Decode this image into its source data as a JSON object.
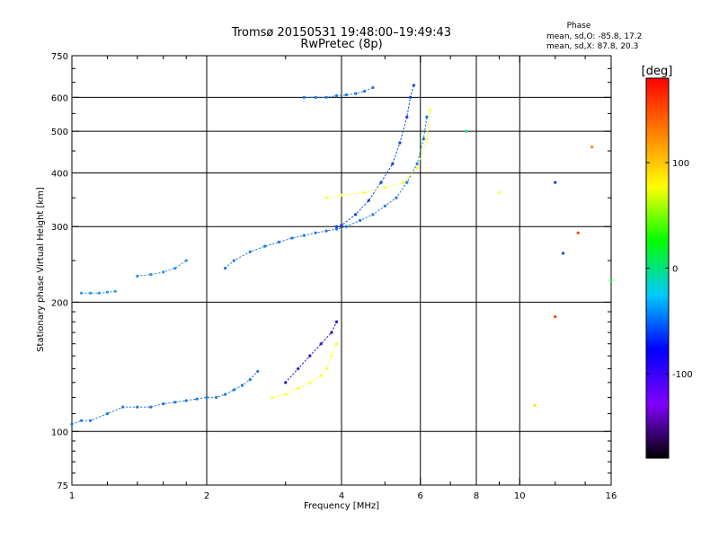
{
  "chart_data": {
    "type": "scatter",
    "title": "Tromsø 20150531 19:48:00–19:49:43",
    "subtitle": "RwPretec (8p)",
    "xlabel": "Frequency [MHz]",
    "ylabel": "Stationary phase Virtual Height [km]",
    "x_scale": "log",
    "y_scale": "log",
    "xlim": [
      1,
      16
    ],
    "ylim": [
      75,
      750
    ],
    "x_ticks": [
      1,
      2,
      4,
      6,
      8,
      10,
      16
    ],
    "x_minor_ticks": [
      1.2,
      1.4,
      1.6,
      1.8,
      3,
      5,
      7,
      9,
      12,
      14
    ],
    "x_gridlines": [
      2,
      4,
      6,
      8,
      10
    ],
    "y_ticks": [
      75,
      100,
      200,
      300,
      400,
      500,
      600,
      750
    ],
    "y_gridlines": [
      100,
      200,
      300,
      400,
      500,
      600
    ],
    "grid": true,
    "phase_box": {
      "heading": "Phase",
      "line_o": "mean, sd,O: -85.8, 17.2",
      "line_x": "mean, sd,X:  87.8, 20.3"
    },
    "colorbar": {
      "label": "[deg]",
      "range": [
        -180,
        180
      ],
      "ticks": [
        100,
        0,
        -100
      ],
      "stops": [
        "#000000",
        "#8000ff",
        "#0000ff",
        "#00c8ff",
        "#00ff00",
        "#ffff00",
        "#ff8000",
        "#ff0000"
      ]
    },
    "series": [
      {
        "color": "#1a78e0",
        "x": [
          1.0,
          1.05,
          1.1,
          1.2,
          1.3,
          1.4,
          1.5,
          1.6,
          1.7,
          1.8,
          1.9,
          2.0,
          2.1,
          2.2,
          2.3,
          2.4,
          2.5,
          2.6
        ],
        "y": [
          104,
          106,
          106,
          110,
          114,
          114,
          114,
          116,
          117,
          118,
          119,
          120,
          120,
          122,
          125,
          128,
          132,
          138
        ]
      },
      {
        "color": "#1a78e0",
        "x": [
          2.2,
          2.3,
          2.5,
          2.7,
          2.9,
          3.1,
          3.3,
          3.5,
          3.7,
          3.9,
          4.1,
          4.4,
          4.7,
          5.0,
          5.3,
          5.6,
          5.9,
          6.1,
          6.2
        ],
        "y": [
          240,
          250,
          262,
          270,
          276,
          282,
          286,
          290,
          293,
          296,
          300,
          310,
          320,
          335,
          350,
          380,
          420,
          480,
          540
        ]
      },
      {
        "color": "#2a9af0",
        "x": [
          1.05,
          1.1,
          1.15,
          1.2,
          1.25
        ],
        "y": [
          210,
          210,
          210,
          211,
          212
        ]
      },
      {
        "color": "#1a78e0",
        "x": [
          3.3,
          3.5,
          3.7,
          3.9,
          4.1,
          4.3,
          4.5,
          4.7
        ],
        "y": [
          600,
          600,
          600,
          605,
          608,
          612,
          620,
          632
        ]
      },
      {
        "color": "#1040e0",
        "x": [
          3.9,
          4.0,
          4.3,
          4.6,
          4.9,
          5.2,
          5.4,
          5.6,
          5.7,
          5.8
        ],
        "y": [
          300,
          302,
          320,
          345,
          380,
          420,
          470,
          540,
          600,
          640
        ]
      },
      {
        "color": "#ffff30",
        "x": [
          2.8,
          3.0,
          3.2,
          3.4,
          3.6,
          3.7,
          3.8,
          3.9
        ],
        "y": [
          120,
          122,
          126,
          130,
          135,
          140,
          150,
          160
        ]
      },
      {
        "color": "#ffff30",
        "x": [
          3.7,
          4.0,
          4.5,
          5.0,
          5.5,
          5.9,
          6.2,
          6.3
        ],
        "y": [
          350,
          355,
          360,
          370,
          380,
          410,
          480,
          560
        ]
      },
      {
        "color": "#3010c0",
        "x": [
          3.0,
          3.2,
          3.4,
          3.6,
          3.8,
          3.9
        ],
        "y": [
          130,
          140,
          150,
          160,
          170,
          180
        ]
      },
      {
        "color": "#2a90f0",
        "x": [
          1.4,
          1.5,
          1.6,
          1.7,
          1.8
        ],
        "y": [
          230,
          232,
          235,
          240,
          250
        ]
      }
    ],
    "annotations": [
      {
        "color": "#ffff30",
        "x": 9.0,
        "y": 360
      },
      {
        "color": "#1040e0",
        "x": 12.0,
        "y": 380
      },
      {
        "color": "#ff8000",
        "x": 14.5,
        "y": 460
      },
      {
        "color": "#1040e0",
        "x": 12.5,
        "y": 260
      },
      {
        "color": "#ff4000",
        "x": 13.5,
        "y": 290
      },
      {
        "color": "#00ff40",
        "x": 16.0,
        "y": 225
      },
      {
        "color": "#ff4000",
        "x": 12.0,
        "y": 185
      },
      {
        "color": "#00e0a0",
        "x": 7.6,
        "y": 500
      },
      {
        "color": "#ffe000",
        "x": 10.8,
        "y": 115
      }
    ]
  }
}
